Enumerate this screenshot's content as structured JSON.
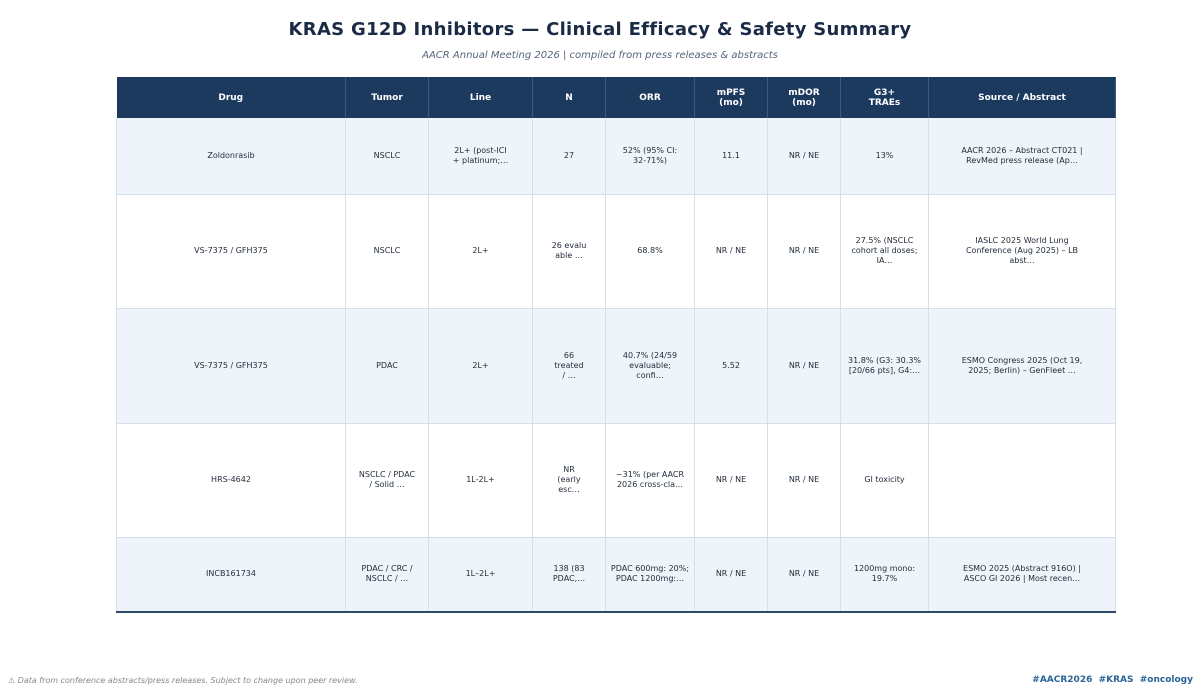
{
  "header": {
    "title": "KRAS G12D Inhibitors — Clinical Efficacy & Safety Summary",
    "subtitle": "AACR Annual Meeting 2026 | compiled from press releases & abstracts"
  },
  "table": {
    "columns": [
      "Drug",
      "Tumor",
      "Line",
      "N",
      "ORR",
      "mPFS\n(mo)",
      "mDOR\n(mo)",
      "G3+\nTRAEs",
      "Source / Abstract"
    ],
    "rows": [
      [
        "Zoldonrasib",
        "NSCLC",
        "2L+ (post-ICI\n+ platinum;…",
        27,
        "52% (95% CI:\n32-71%)",
        11.1,
        "NR / NE",
        "13%",
        "AACR 2026 – Abstract CT021 |\nRevMed press release (Ap…"
      ],
      [
        "VS-7375 / GFH375",
        "NSCLC",
        "2L+",
        "26 evalu\nable …",
        "68.8%",
        "NR / NE",
        "NR / NE",
        "27.5% (NSCLC\ncohort all doses;\nIA…",
        "IASLC 2025 World Lung\nConference (Aug 2025) – LB\nabst…"
      ],
      [
        "VS-7375 / GFH375",
        "PDAC",
        "2L+",
        "66\ntreated\n/ …",
        "40.7% (24/59\nevaluable;\nconfi…",
        5.52,
        "NR / NE",
        "31.8% (G3: 30.3%\n[20/66 pts], G4:…",
        "ESMO Congress 2025 (Oct 19,\n2025; Berlin) – GenFleet …"
      ],
      [
        "HRS-4642",
        "NSCLC / PDAC\n/ Solid …",
        "1L-2L+",
        "NR\n(early\nesc…",
        "~31% (per AACR\n2026 cross-cla…",
        "NR / NE",
        "NR / NE",
        "GI toxicity",
        null
      ],
      [
        "INCB161734",
        "PDAC / CRC /\nNSCLC / …",
        "1L–2L+",
        "138 (83\nPDAC,…",
        "PDAC 600mg: 20%;\nPDAC 1200mg:…",
        "NR / NE",
        "NR / NE",
        "1200mg mono: 19.7%",
        "ESMO 2025 (Abstract 916O) |\nASCO GI 2026 | Most recen…"
      ]
    ]
  },
  "footer": {
    "note": "⚠ Data from conference abstracts/press releases. Subject to change upon peer review.",
    "tags": "#AACR2026  #KRAS  #oncology"
  }
}
